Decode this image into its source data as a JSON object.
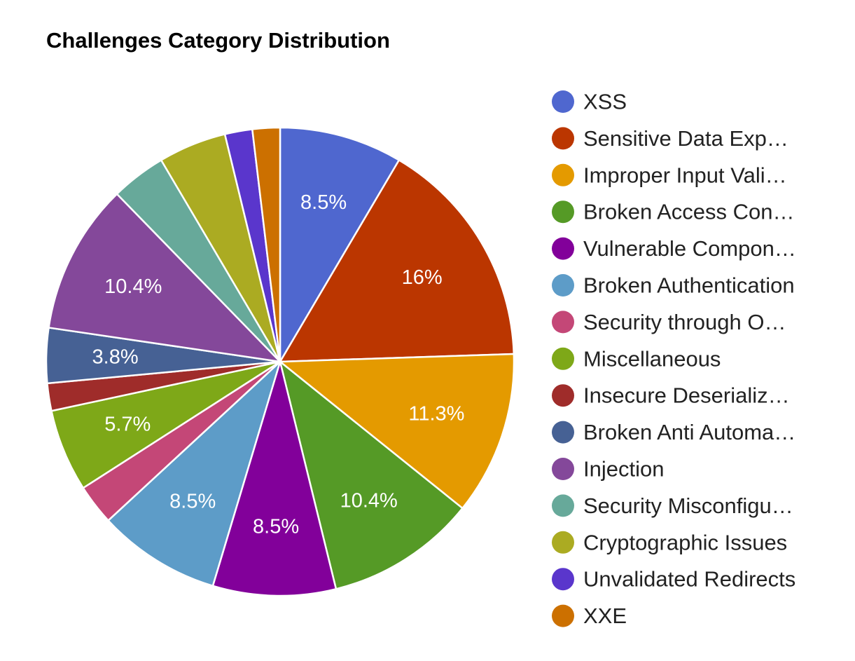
{
  "chart_data": {
    "type": "pie",
    "title": "Challenges Category Distribution",
    "legend_position": "right",
    "slices": [
      {
        "name": "XSS",
        "legend_label": "XSS",
        "value": 8.5,
        "label": "8.5%",
        "color": "#4f67cf"
      },
      {
        "name": "Sensitive Data Exposure",
        "legend_label": "Sensitive Data Exp…",
        "value": 16.0,
        "label": "16%",
        "color": "#bb3600"
      },
      {
        "name": "Improper Input Validation",
        "legend_label": "Improper Input Vali…",
        "value": 11.3,
        "label": "11.3%",
        "color": "#e49a00"
      },
      {
        "name": "Broken Access Control",
        "legend_label": "Broken Access Con…",
        "value": 10.4,
        "label": "10.4%",
        "color": "#559a26"
      },
      {
        "name": "Vulnerable Components",
        "legend_label": "Vulnerable Compon…",
        "value": 8.5,
        "label": "8.5%",
        "color": "#82009a"
      },
      {
        "name": "Broken Authentication",
        "legend_label": "Broken Authentication",
        "value": 8.5,
        "label": "8.5%",
        "color": "#5d9cc8"
      },
      {
        "name": "Security through Obscurity",
        "legend_label": "Security through O…",
        "value": 2.8,
        "label": "",
        "color": "#c44777"
      },
      {
        "name": "Miscellaneous",
        "legend_label": "Miscellaneous",
        "value": 5.7,
        "label": "5.7%",
        "color": "#7ea818"
      },
      {
        "name": "Insecure Deserialization",
        "legend_label": "Insecure Deserializ…",
        "value": 1.9,
        "label": "",
        "color": "#9f2c2a"
      },
      {
        "name": "Broken Anti Automation",
        "legend_label": "Broken Anti Automa…",
        "value": 3.8,
        "label": "3.8%",
        "color": "#466194"
      },
      {
        "name": "Injection",
        "legend_label": "Injection",
        "value": 10.4,
        "label": "10.4%",
        "color": "#84489a"
      },
      {
        "name": "Security Misconfiguration",
        "legend_label": "Security Misconfigu…",
        "value": 3.8,
        "label": "",
        "color": "#67a99a"
      },
      {
        "name": "Cryptographic Issues",
        "legend_label": "Cryptographic Issues",
        "value": 4.7,
        "label": "",
        "color": "#abab22"
      },
      {
        "name": "Unvalidated Redirects",
        "legend_label": "Unvalidated Redirects",
        "value": 1.9,
        "label": "",
        "color": "#5a36cc"
      },
      {
        "name": "XXE",
        "legend_label": "XXE",
        "value": 1.9,
        "label": "",
        "color": "#cc7000"
      }
    ]
  }
}
